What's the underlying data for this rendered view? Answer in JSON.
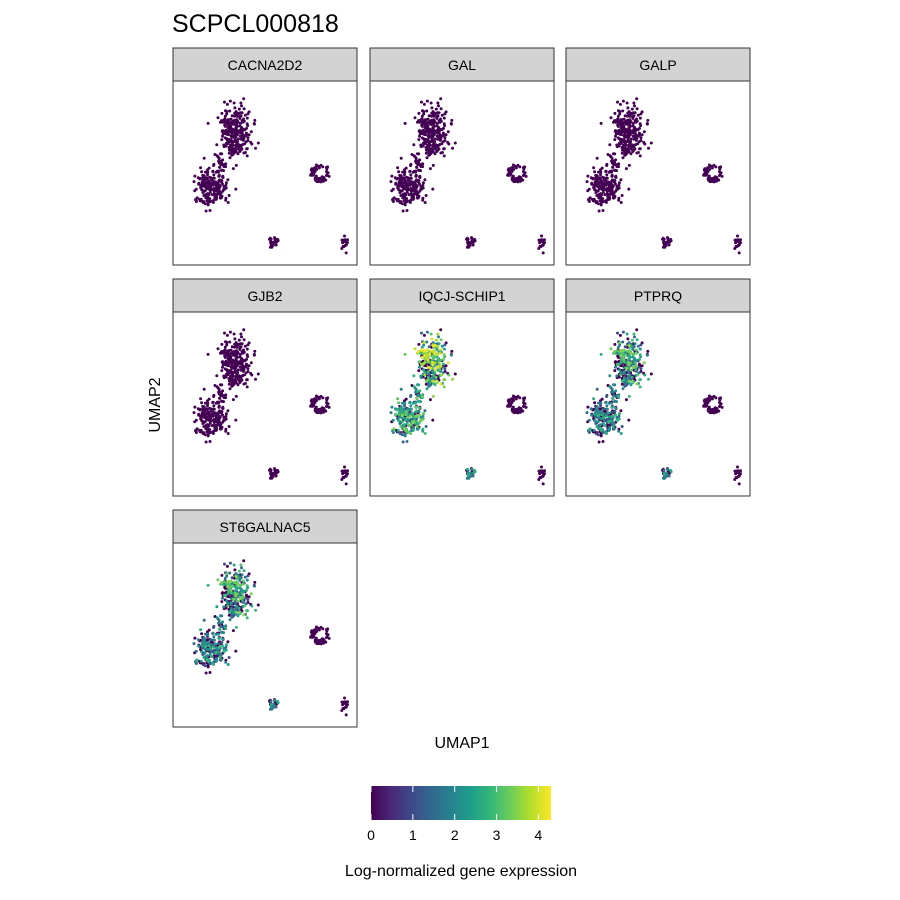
{
  "chart_data": {
    "type": "scatter",
    "title": "SCPCL000818",
    "xlabel": "UMAP1",
    "ylabel": "UMAP2",
    "facets": [
      {
        "gene": "CACNA2D2",
        "expression_profile": "none"
      },
      {
        "gene": "GAL",
        "expression_profile": "none"
      },
      {
        "gene": "GALP",
        "expression_profile": "none"
      },
      {
        "gene": "GJB2",
        "expression_profile": "none"
      },
      {
        "gene": "IQCJ-SCHIP1",
        "expression_profile": "high"
      },
      {
        "gene": "PTPRQ",
        "expression_profile": "moderate"
      },
      {
        "gene": "ST6GALNAC5",
        "expression_profile": "moderate"
      }
    ],
    "clusters": [
      {
        "center": [
          -1.6,
          2.4
        ],
        "spread": [
          0.85,
          1.3
        ],
        "count": 230
      },
      {
        "center": [
          -1.7,
          1.3
        ],
        "spread": [
          0.35,
          0.4
        ],
        "count": 30
      },
      {
        "center": [
          -2.4,
          0.5
        ],
        "spread": [
          0.3,
          0.65
        ],
        "count": 30
      },
      {
        "center": [
          -2.9,
          -0.8
        ],
        "spread": [
          0.95,
          0.95
        ],
        "count": 200
      },
      {
        "center": [
          0.5,
          -3.8
        ],
        "spread": [
          0.35,
          0.3
        ],
        "count": 25
      },
      {
        "center": [
          3.0,
          0.0
        ],
        "spread": [
          0.55,
          0.5
        ],
        "count": 60
      },
      {
        "center": [
          4.3,
          -3.8
        ],
        "spread": [
          0.18,
          0.4
        ],
        "count": 20
      }
    ],
    "xlim": [
      -5,
      5
    ],
    "ylim": [
      -5,
      5
    ],
    "grid": false,
    "legend": {
      "title": "Log-normalized gene expression",
      "placement": "bottom",
      "scale": "viridis",
      "min": 0,
      "max": 4.3,
      "ticks": [
        "0",
        "1",
        "2",
        "3",
        "4"
      ]
    },
    "colors": {
      "viridis_stops": [
        "#440154",
        "#482878",
        "#3e4989",
        "#31688e",
        "#26828e",
        "#1f9e89",
        "#35b779",
        "#6ece58",
        "#b5de2b",
        "#fde725"
      ],
      "strip_background": "#d3d3d3",
      "panel_border": "#333333"
    }
  }
}
